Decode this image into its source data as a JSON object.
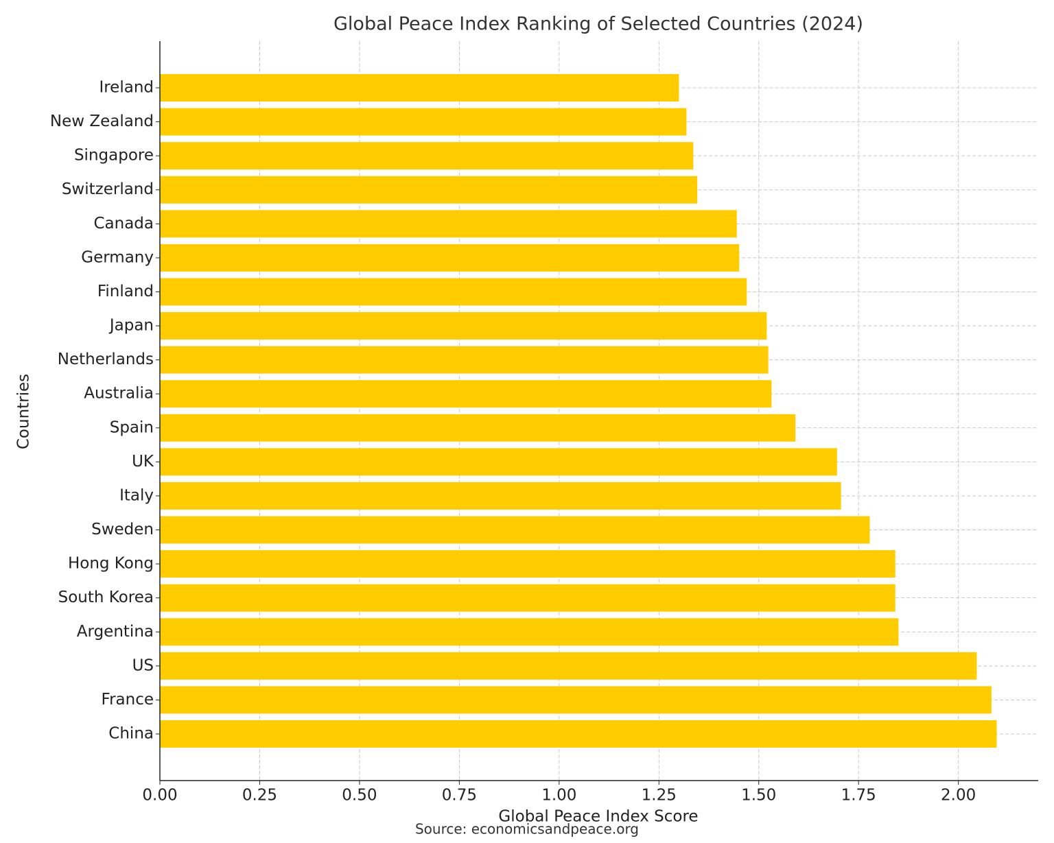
{
  "chart_data": {
    "type": "barh",
    "title": "Global Peace Index Ranking of Selected Countries (2024)",
    "x_label": "Global Peace Index Score",
    "y_label": "Countries",
    "source": "Source: economicsandpeace.org",
    "categories": [
      "Ireland",
      "New Zealand",
      "Singapore",
      "Switzerland",
      "Canada",
      "Germany",
      "Finland",
      "Japan",
      "Netherlands",
      "Australia",
      "Spain",
      "UK",
      "Italy",
      "Sweden",
      "Hong Kong",
      "South Korea",
      "Argentina",
      "US",
      "France",
      "China"
    ],
    "values": [
      1.3,
      1.319,
      1.336,
      1.346,
      1.445,
      1.451,
      1.47,
      1.52,
      1.524,
      1.532,
      1.592,
      1.696,
      1.706,
      1.778,
      1.842,
      1.842,
      1.85,
      2.046,
      2.083,
      2.096
    ],
    "color": "#ffcc00",
    "xlim": [
      0,
      2.2
    ],
    "xticks": [
      {
        "value": 0,
        "label": "0.00"
      },
      {
        "value": 0.25,
        "label": "0.25"
      },
      {
        "value": 0.5,
        "label": "0.50"
      },
      {
        "value": 0.75,
        "label": "0.75"
      },
      {
        "value": 1,
        "label": "1.00"
      },
      {
        "value": 1.25,
        "label": "1.25"
      },
      {
        "value": 1.5,
        "label": "1.50"
      },
      {
        "value": 1.75,
        "label": "1.75"
      },
      {
        "value": 2,
        "label": "2.00"
      }
    ],
    "grid": true
  }
}
